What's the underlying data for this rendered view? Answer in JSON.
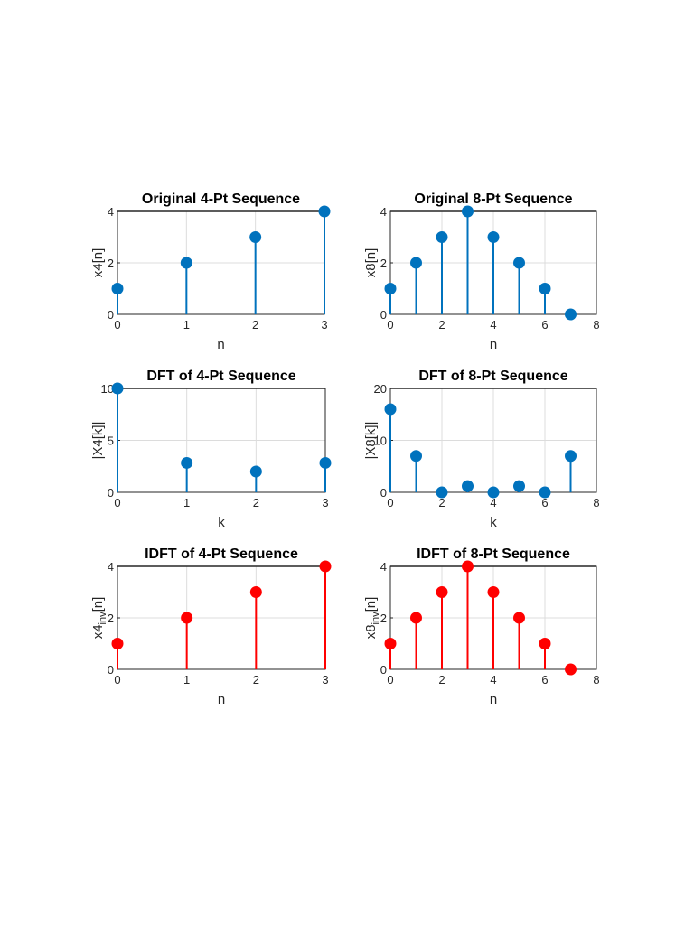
{
  "colors": {
    "blue": "#0072bd",
    "red": "#ff0000"
  },
  "chart_data": [
    {
      "type": "stem",
      "title": "Original 4-Pt Sequence",
      "xlabel": "n",
      "ylabel": "x4[n]",
      "x": [
        0,
        1,
        2,
        3
      ],
      "values": [
        1,
        2,
        3,
        4
      ],
      "xlim": [
        0,
        3
      ],
      "ylim": [
        0,
        4
      ],
      "xticks": [
        0,
        1,
        2,
        3
      ],
      "yticks": [
        0,
        2,
        4
      ],
      "color": "blue",
      "grid": true
    },
    {
      "type": "stem",
      "title": "Original 8-Pt Sequence",
      "xlabel": "n",
      "ylabel": "x8[n]",
      "x": [
        0,
        1,
        2,
        3,
        4,
        5,
        6,
        7
      ],
      "values": [
        1,
        2,
        3,
        4,
        3,
        2,
        1,
        0
      ],
      "xlim": [
        0,
        8
      ],
      "ylim": [
        0,
        4
      ],
      "xticks": [
        0,
        2,
        4,
        6,
        8
      ],
      "yticks": [
        0,
        2,
        4
      ],
      "color": "blue",
      "grid": true
    },
    {
      "type": "stem",
      "title": "DFT of 4-Pt Sequence",
      "xlabel": "k",
      "ylabel": "|X4[k]|",
      "x": [
        0,
        1,
        2,
        3
      ],
      "values": [
        10,
        2.83,
        2,
        2.83
      ],
      "xlim": [
        0,
        3
      ],
      "ylim": [
        0,
        10
      ],
      "xticks": [
        0,
        1,
        2,
        3
      ],
      "yticks": [
        0,
        5,
        10
      ],
      "color": "blue",
      "grid": true
    },
    {
      "type": "stem",
      "title": "DFT of 8-Pt Sequence",
      "xlabel": "k",
      "ylabel": "|X8[k]|",
      "x": [
        0,
        1,
        2,
        3,
        4,
        5,
        6,
        7
      ],
      "values": [
        16,
        7.0,
        0,
        1.2,
        0,
        1.2,
        0,
        7.0
      ],
      "xlim": [
        0,
        8
      ],
      "ylim": [
        0,
        20
      ],
      "xticks": [
        0,
        2,
        4,
        6,
        8
      ],
      "yticks": [
        0,
        10,
        20
      ],
      "color": "blue",
      "grid": true
    },
    {
      "type": "stem",
      "title": "IDFT of 4-Pt Sequence",
      "xlabel": "n",
      "ylabel": "x4",
      "ylabel_sub": "inv",
      "ylabel_suffix": "[n]",
      "x": [
        0,
        1,
        2,
        3
      ],
      "values": [
        1,
        2,
        3,
        4
      ],
      "xlim": [
        0,
        3
      ],
      "ylim": [
        0,
        4
      ],
      "xticks": [
        0,
        1,
        2,
        3
      ],
      "yticks": [
        0,
        2,
        4
      ],
      "color": "red",
      "grid": true
    },
    {
      "type": "stem",
      "title": "IDFT of 8-Pt Sequence",
      "xlabel": "n",
      "ylabel": "x8",
      "ylabel_sub": "inv",
      "ylabel_suffix": "[n]",
      "x": [
        0,
        1,
        2,
        3,
        4,
        5,
        6,
        7
      ],
      "values": [
        1,
        2,
        3,
        4,
        3,
        2,
        1,
        0
      ],
      "xlim": [
        0,
        8
      ],
      "ylim": [
        0,
        4
      ],
      "xticks": [
        0,
        2,
        4,
        6,
        8
      ],
      "yticks": [
        0,
        2,
        4
      ],
      "color": "red",
      "grid": true
    }
  ]
}
